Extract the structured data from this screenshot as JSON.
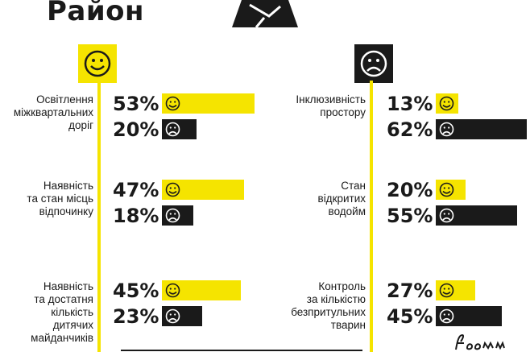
{
  "title": "Район",
  "chart_data": {
    "type": "bar",
    "unit": "%",
    "groups": [
      {
        "label": "Освітлення міжквартальних доріг",
        "lines": [
          "Освітлення",
          "міжквартальних",
          "доріг"
        ],
        "positive": 53,
        "negative": 20
      },
      {
        "label": "Наявність та стан місць відпочинку",
        "lines": [
          "Наявність",
          "та стан місць",
          "відпочинку"
        ],
        "positive": 47,
        "negative": 18
      },
      {
        "label": "Наявність та достатня кількість дитячих майданчиків",
        "lines": [
          "Наявність",
          "та достатня",
          "кількість",
          "дитячих",
          "майданчиків"
        ],
        "positive": 45,
        "negative": 23
      },
      {
        "label": "Інклюзивність простору",
        "lines": [
          "Інклюзивність",
          "простору"
        ],
        "positive": 13,
        "negative": 62
      },
      {
        "label": "Стан відкритих водойм",
        "lines": [
          "Стан",
          "відкритих",
          "водойм"
        ],
        "positive": 20,
        "negative": 55
      },
      {
        "label": "Контроль за кількістю безпритульних тварин",
        "lines": [
          "Контроль",
          "за кількістю",
          "безпритульних",
          "тварин"
        ],
        "positive": 27,
        "negative": 45
      }
    ],
    "labels_text": {
      "g0": [
        "53%",
        "20%"
      ],
      "g1": [
        "47%",
        "18%"
      ],
      "g2": [
        "45%",
        "23%"
      ],
      "g3": [
        "13%",
        "62%"
      ],
      "g4": [
        "20%",
        "55%"
      ],
      "g5": [
        "27%",
        "45%"
      ]
    },
    "colors": {
      "positive": "#f5e400",
      "negative": "#1a1a1a"
    }
  }
}
